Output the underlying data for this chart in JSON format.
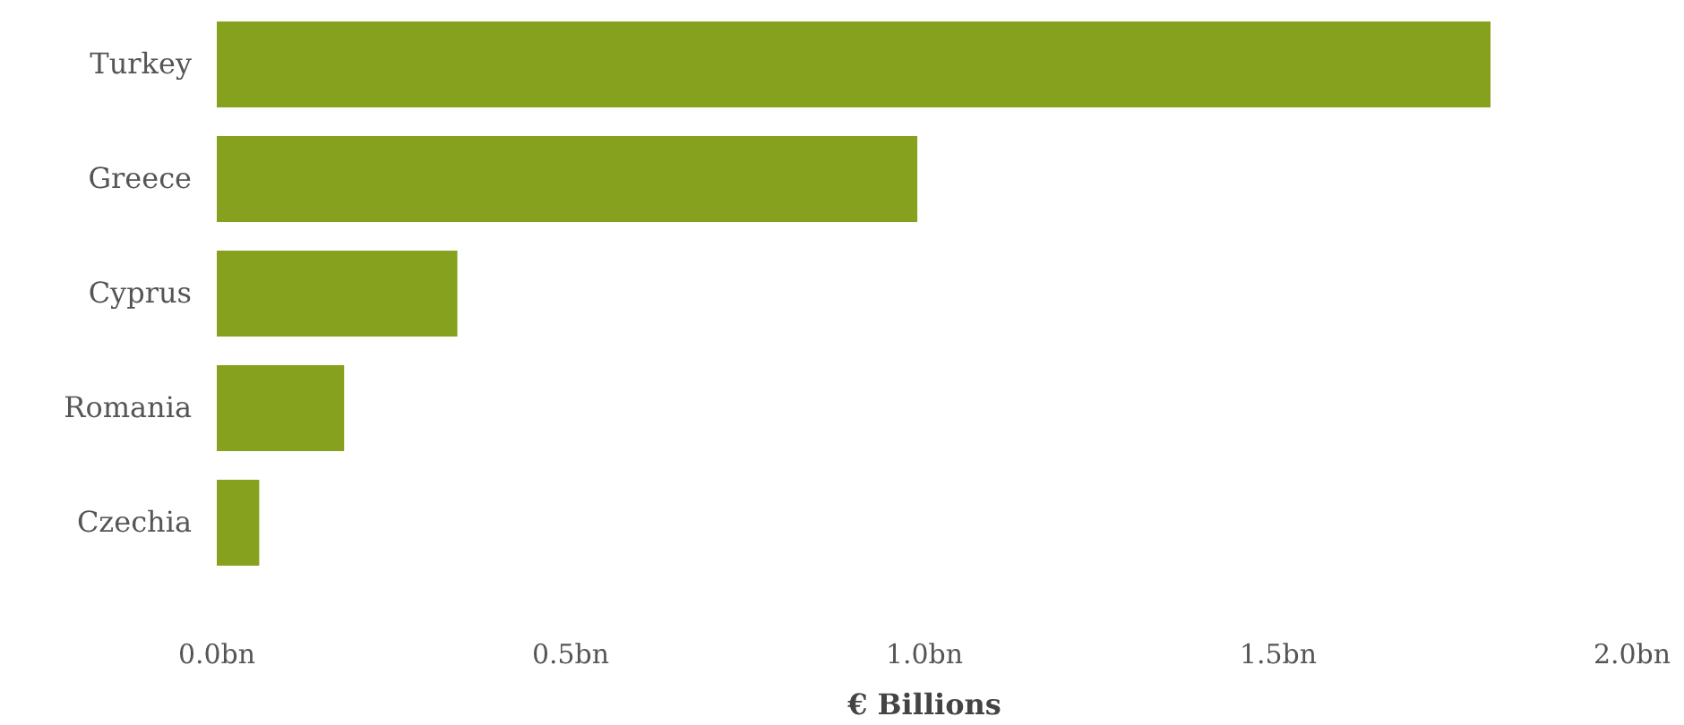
{
  "chart_data": {
    "type": "bar",
    "orientation": "horizontal",
    "xlabel": "€ Billions",
    "categories": [
      "Turkey",
      "Greece",
      "Cyprus",
      "Romania",
      "Czechia"
    ],
    "values": [
      1.8,
      0.99,
      0.34,
      0.18,
      0.06
    ],
    "color": "#86a11d",
    "xlim": [
      0,
      2
    ],
    "xticks": [
      {
        "value": 0,
        "label": "0.0bn"
      },
      {
        "value": 0.5,
        "label": "0.5bn"
      },
      {
        "value": 1,
        "label": "1.0bn"
      },
      {
        "value": 1.5,
        "label": "1.5bn"
      },
      {
        "value": 2,
        "label": "2.0bn"
      }
    ],
    "grid": false
  }
}
